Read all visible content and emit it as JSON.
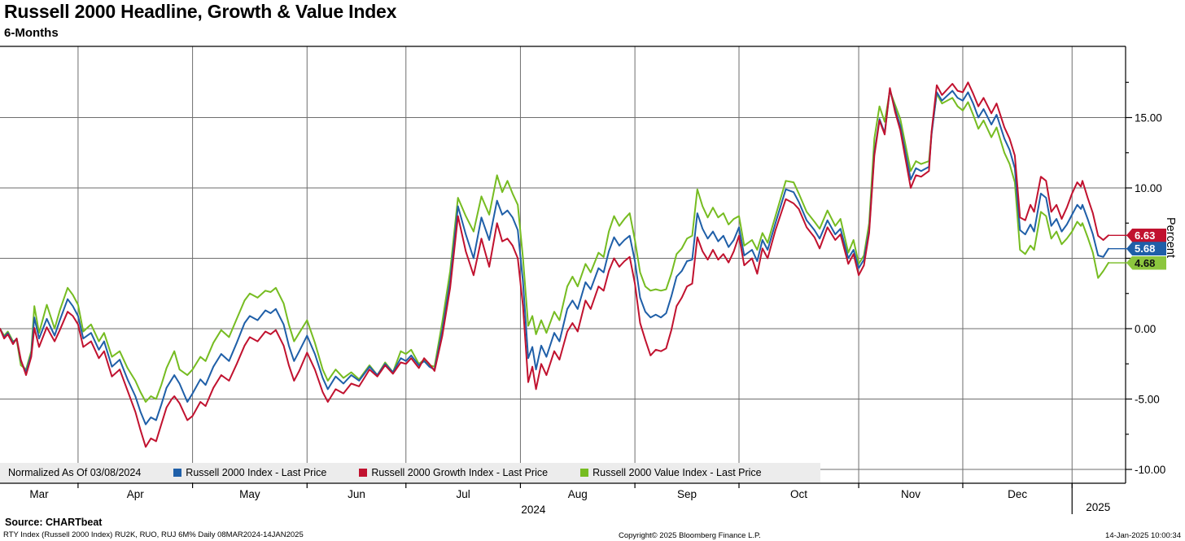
{
  "header": {
    "title": "Russell 2000 Headline, Growth & Value Index",
    "subtitle": "6-Months"
  },
  "legend": {
    "items": [
      {
        "label": "Normalized As Of 03/08/2024",
        "color": null
      },
      {
        "label": "Russell 2000 Index - Last Price",
        "color": "#1f5fa8"
      },
      {
        "label": "Russell 2000 Growth Index - Last Price",
        "color": "#c1122f"
      },
      {
        "label": "Russell 2000 Value Index - Last Price",
        "color": "#76bc21"
      }
    ]
  },
  "y_axis": {
    "axis_label": "Percent",
    "major_ticks": [
      {
        "value": 15,
        "label": "15.00"
      },
      {
        "value": 10,
        "label": "10.00"
      },
      {
        "value": 0,
        "label": "0.00"
      },
      {
        "value": -5,
        "label": "-5.00"
      },
      {
        "value": -10,
        "label": "-10.00"
      }
    ],
    "grid_values": [
      15,
      10,
      5,
      0,
      -5,
      -10
    ],
    "minor_step": 2.5,
    "minor_min": -10,
    "minor_max": 17.5
  },
  "x_axis": {
    "month_labels": [
      {
        "label": "Mar",
        "center_day": 7.5
      },
      {
        "label": "Apr",
        "center_day": 26
      },
      {
        "label": "May",
        "center_day": 48
      },
      {
        "label": "Jun",
        "center_day": 68.5
      },
      {
        "label": "Jul",
        "center_day": 89
      },
      {
        "label": "Aug",
        "center_day": 111
      },
      {
        "label": "Sep",
        "center_day": 132
      },
      {
        "label": "Oct",
        "center_day": 153.5
      },
      {
        "label": "Nov",
        "center_day": 175
      },
      {
        "label": "Dec",
        "center_day": 195.5
      }
    ],
    "boundary_days": [
      15,
      37,
      59,
      78,
      100,
      122,
      142,
      165,
      185,
      206
    ],
    "year_primary": {
      "label": "2024",
      "center_day": 102.5
    },
    "year_secondary": {
      "label": "2025",
      "center_day": 211
    },
    "separator_day": 206
  },
  "last_price_tags": [
    {
      "label": "6.63",
      "value": 6.63,
      "bg": "#c1122f",
      "fg": "#ffffff"
    },
    {
      "label": "5.68",
      "value": 5.68,
      "bg": "#1f5fa8",
      "fg": "#ffffff"
    },
    {
      "label": "4.68",
      "value": 4.68,
      "bg": "#8cc63e",
      "fg": "#111111"
    }
  ],
  "footer": {
    "source": "Source: CHARTbeat",
    "ticker_line": "RTY Index (Russell 2000 Index) RU2K, RUO, RUJ 6M%  Daily 08MAR2024-14JAN2025",
    "copyright": "Copyright© 2025 Bloomberg Finance L.P.",
    "timestamp": "14-Jan-2025 10:00:34"
  },
  "chart_data": {
    "type": "line",
    "title": "Russell 2000 Headline, Growth & Value Index",
    "subtitle": "6-Months",
    "normalized_note": "Normalized As Of 03/08/2024",
    "x_unit": "trading days since 08-Mar-2024 (0 = 08MAR2024, 213 = 14JAN2025)",
    "xlabel": "",
    "ylabel": "Percent",
    "ylim": [
      -11,
      20
    ],
    "xlim_days": [
      0,
      213
    ],
    "grid": true,
    "legend_position": "bottom",
    "days": [
      0,
      0.8,
      1.5,
      2.5,
      3.2,
      4,
      5,
      6,
      6.6,
      7.5,
      9,
      10.5,
      11.5,
      13,
      14,
      15,
      16,
      17.5,
      19,
      20,
      21.5,
      23,
      24.5,
      26,
      27,
      28,
      29,
      30,
      31,
      32,
      33,
      33.5,
      34.5,
      36,
      37,
      38.5,
      39.5,
      41,
      42.5,
      44,
      45.5,
      47,
      48,
      49.5,
      51,
      52,
      53,
      54.5,
      55.5,
      56.5,
      57.5,
      59,
      60.5,
      62,
      63,
      64.5,
      66,
      67.5,
      69,
      70,
      71,
      72.5,
      74,
      75.5,
      77,
      78,
      79,
      80.5,
      81.5,
      82.5,
      83.5,
      85,
      86.5,
      88,
      89.5,
      91,
      92.5,
      94,
      95.5,
      96.5,
      97.5,
      98.5,
      99.5,
      100.5,
      101.5,
      102.3,
      103,
      104,
      105,
      106.5,
      107.5,
      109,
      110,
      111,
      112.5,
      113.5,
      115,
      116,
      117,
      118,
      119,
      120,
      121,
      122,
      123,
      124,
      125,
      126,
      127,
      128,
      129,
      130,
      131,
      132,
      133,
      134,
      135,
      136,
      137,
      138,
      139,
      140,
      141,
      142,
      143,
      144.5,
      145.5,
      146.5,
      147.5,
      149,
      151,
      152.5,
      153.5,
      155,
      156.5,
      157.5,
      159,
      160.5,
      161.5,
      163,
      164,
      165,
      166,
      167,
      168,
      169,
      170,
      171,
      172,
      173,
      175,
      176,
      177,
      178.5,
      179,
      180,
      181,
      183,
      184,
      185,
      186,
      187,
      188,
      189,
      190.5,
      191.5,
      193,
      194,
      195,
      196,
      197,
      198,
      198.7,
      200,
      201,
      202,
      203,
      204,
      205,
      206,
      207,
      207.7,
      208,
      209,
      210,
      211,
      212,
      213
    ],
    "series": [
      {
        "name": "Russell 2000 Value Index - Last Price",
        "color": "#76bc21",
        "last_price": 4.68,
        "values": [
          0,
          -0.5,
          -0.2,
          -0.9,
          -0.8,
          -2.6,
          -2.9,
          -1.6,
          1.6,
          -0.3,
          1.7,
          0.0,
          1.3,
          2.9,
          2.4,
          1.7,
          -0.2,
          0.3,
          -0.9,
          -0.3,
          -2.0,
          -1.6,
          -2.8,
          -3.7,
          -4.5,
          -5.2,
          -4.8,
          -5.0,
          -4.0,
          -2.8,
          -2.0,
          -1.6,
          -2.9,
          -3.3,
          -2.9,
          -2.0,
          -2.3,
          -1.0,
          -0.1,
          -0.6,
          0.7,
          2.0,
          2.5,
          2.2,
          2.7,
          2.6,
          2.9,
          1.8,
          0.3,
          -0.9,
          -0.3,
          0.6,
          -1.0,
          -2.9,
          -3.7,
          -2.9,
          -3.5,
          -3.1,
          -3.6,
          -3.1,
          -2.6,
          -3.3,
          -2.4,
          -3.1,
          -1.6,
          -1.8,
          -1.5,
          -2.5,
          -2.2,
          -2.6,
          -2.7,
          0.5,
          4.1,
          9.3,
          8.0,
          6.9,
          9.4,
          8.1,
          10.9,
          9.7,
          10.5,
          9.6,
          8.8,
          5.0,
          0.2,
          0.9,
          -0.4,
          0.6,
          -0.3,
          1.2,
          0.6,
          3.0,
          3.7,
          3.0,
          4.6,
          4.0,
          5.4,
          5.1,
          6.9,
          8.0,
          7.3,
          7.8,
          8.2,
          6.3,
          4.0,
          3.0,
          2.7,
          2.8,
          2.7,
          2.8,
          3.9,
          5.3,
          5.7,
          6.4,
          6.6,
          9.9,
          8.7,
          7.9,
          8.6,
          7.9,
          8.2,
          7.4,
          7.8,
          8.0,
          5.9,
          6.3,
          5.6,
          6.8,
          6.1,
          8.0,
          10.5,
          10.4,
          9.6,
          8.3,
          7.6,
          7.1,
          8.4,
          7.3,
          7.8,
          5.4,
          6.3,
          4.6,
          5.2,
          7.5,
          13.5,
          15.8,
          14.7,
          16.9,
          15.9,
          14.9,
          11.2,
          11.9,
          11.7,
          11.9,
          13.9,
          16.7,
          16.0,
          16.4,
          15.8,
          15.5,
          16.1,
          15.2,
          14.2,
          14.8,
          13.6,
          14.3,
          12.5,
          11.7,
          10.4,
          5.6,
          5.3,
          5.9,
          5.6,
          8.3,
          8.0,
          6.4,
          6.9,
          6.0,
          6.4,
          6.9,
          7.6,
          7.3,
          7.5,
          6.5,
          5.4,
          3.6,
          4.1,
          4.68
        ]
      },
      {
        "name": "Russell 2000 Index - Last Price",
        "color": "#1f5fa8",
        "last_price": 5.68,
        "values": [
          0,
          -0.6,
          -0.3,
          -1.0,
          -0.7,
          -2.3,
          -3.1,
          -1.8,
          0.8,
          -0.7,
          0.7,
          -0.5,
          0.6,
          2.1,
          1.6,
          0.9,
          -0.7,
          -0.3,
          -1.5,
          -0.9,
          -2.7,
          -2.2,
          -3.6,
          -4.8,
          -5.9,
          -6.8,
          -6.3,
          -6.5,
          -5.4,
          -4.2,
          -3.6,
          -3.3,
          -3.9,
          -5.2,
          -4.6,
          -3.6,
          -4.0,
          -2.7,
          -1.8,
          -2.3,
          -1.0,
          0.4,
          0.9,
          0.6,
          1.3,
          1.1,
          1.4,
          0.3,
          -1.2,
          -2.3,
          -1.6,
          -0.5,
          -1.8,
          -3.5,
          -4.3,
          -3.4,
          -3.9,
          -3.3,
          -3.7,
          -3.2,
          -2.7,
          -3.3,
          -2.5,
          -3.1,
          -2.1,
          -2.3,
          -1.9,
          -2.6,
          -2.3,
          -2.7,
          -2.9,
          -0.1,
          3.4,
          8.7,
          6.7,
          5.0,
          7.9,
          6.3,
          9.1,
          8.1,
          8.4,
          7.9,
          7.0,
          3.3,
          -2.1,
          -1.3,
          -2.9,
          -1.2,
          -2.0,
          -0.3,
          -0.9,
          1.4,
          2.0,
          1.4,
          3.3,
          2.8,
          4.3,
          4.0,
          5.5,
          6.5,
          5.9,
          6.3,
          6.6,
          4.8,
          2.2,
          1.2,
          0.8,
          1.0,
          0.8,
          1.1,
          2.3,
          3.7,
          4.1,
          4.8,
          4.9,
          8.2,
          7.1,
          6.4,
          6.9,
          6.2,
          6.6,
          5.8,
          6.3,
          7.2,
          5.2,
          5.6,
          4.8,
          6.3,
          5.6,
          7.5,
          9.9,
          9.7,
          9.0,
          7.7,
          7.0,
          6.4,
          7.7,
          6.7,
          7.1,
          5.0,
          5.6,
          4.3,
          4.9,
          7.0,
          12.5,
          14.9,
          13.9,
          17.0,
          15.6,
          14.4,
          10.6,
          11.4,
          11.2,
          11.5,
          13.8,
          16.8,
          16.2,
          16.9,
          16.4,
          16.2,
          16.8,
          16.0,
          15.0,
          15.6,
          14.5,
          15.2,
          13.5,
          12.7,
          11.4,
          7.0,
          6.7,
          7.4,
          6.9,
          9.6,
          9.3,
          7.3,
          7.8,
          6.9,
          7.4,
          8.1,
          8.8,
          8.5,
          8.8,
          7.8,
          6.7,
          5.2,
          5.1,
          5.68
        ]
      },
      {
        "name": "Russell 2000 Growth Index - Last Price",
        "color": "#c1122f",
        "last_price": 6.63,
        "values": [
          0,
          -0.7,
          -0.4,
          -1.1,
          -0.7,
          -2.2,
          -3.3,
          -2.0,
          0.05,
          -1.3,
          0.1,
          -0.9,
          -0.1,
          1.2,
          0.9,
          0.3,
          -1.3,
          -0.9,
          -2.1,
          -1.6,
          -3.4,
          -2.9,
          -4.4,
          -5.9,
          -7.2,
          -8.4,
          -7.8,
          -8.0,
          -6.8,
          -5.6,
          -5.0,
          -4.8,
          -5.3,
          -6.5,
          -6.2,
          -5.2,
          -5.5,
          -4.2,
          -3.3,
          -3.7,
          -2.5,
          -1.2,
          -0.6,
          -0.9,
          -0.2,
          -0.4,
          -0.1,
          -1.2,
          -2.6,
          -3.7,
          -3.0,
          -1.7,
          -2.9,
          -4.5,
          -5.2,
          -4.3,
          -4.6,
          -3.9,
          -4.1,
          -3.5,
          -2.9,
          -3.4,
          -2.6,
          -3.2,
          -2.4,
          -2.5,
          -2.1,
          -2.8,
          -2.1,
          -2.5,
          -3.0,
          -0.5,
          2.9,
          8.0,
          5.5,
          3.8,
          6.4,
          4.4,
          7.5,
          6.2,
          6.4,
          5.9,
          5.0,
          1.6,
          -3.8,
          -2.7,
          -4.3,
          -2.5,
          -3.3,
          -1.6,
          -2.2,
          -0.2,
          0.4,
          -0.2,
          2.0,
          1.4,
          3.0,
          2.7,
          4.1,
          5.0,
          4.4,
          4.8,
          5.1,
          3.2,
          0.4,
          -0.8,
          -1.9,
          -1.5,
          -1.6,
          -1.4,
          -0.1,
          1.6,
          2.2,
          3.0,
          3.2,
          6.5,
          5.5,
          4.9,
          5.6,
          4.9,
          5.3,
          4.7,
          5.5,
          6.6,
          4.5,
          5.0,
          3.9,
          5.7,
          5.0,
          7.0,
          9.2,
          8.9,
          8.5,
          7.2,
          6.5,
          5.7,
          7.2,
          6.3,
          6.7,
          4.6,
          5.3,
          3.8,
          4.5,
          6.8,
          12.3,
          14.8,
          13.8,
          17.1,
          15.4,
          14.1,
          10.0,
          10.9,
          10.8,
          11.2,
          14.0,
          17.3,
          16.6,
          17.4,
          16.9,
          16.8,
          17.5,
          16.7,
          15.8,
          16.4,
          15.3,
          16.0,
          14.3,
          13.5,
          12.3,
          7.9,
          7.7,
          8.8,
          8.3,
          10.8,
          10.5,
          8.3,
          8.8,
          7.8,
          8.6,
          9.6,
          10.4,
          10.1,
          10.5,
          9.3,
          8.2,
          6.6,
          6.3,
          6.63
        ]
      }
    ]
  }
}
